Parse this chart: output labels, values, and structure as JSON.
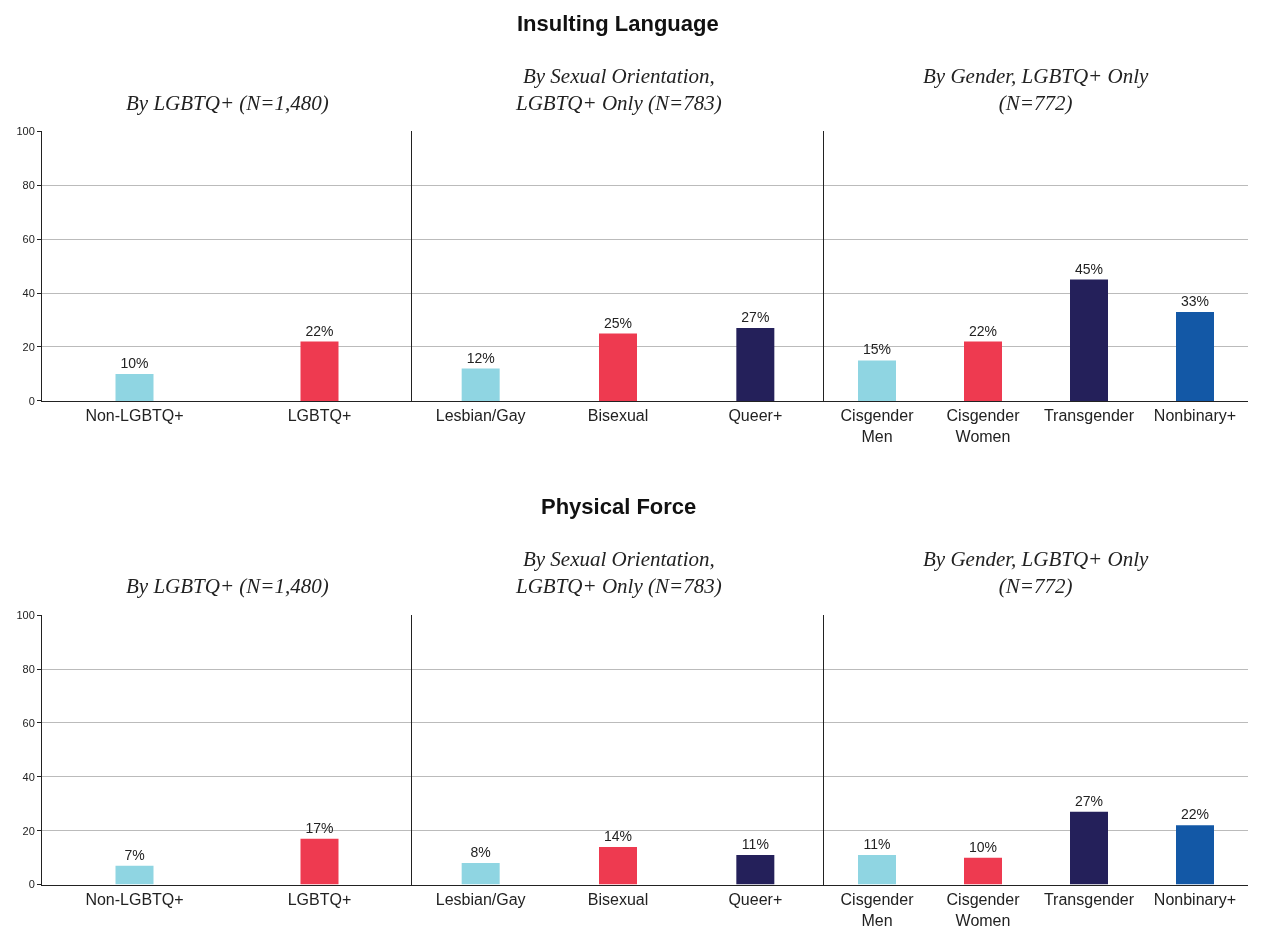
{
  "chart_data": [
    {
      "type": "bar",
      "subtitle": "By LGBTQ+ (N=1,480)",
      "categories": [
        "Non-LGBTQ+",
        "LGBTQ+"
      ],
      "values": [
        10,
        22
      ],
      "value_labels": [
        "10%",
        "22%"
      ],
      "colors": [
        "#8fd5e2",
        "#ee3a50"
      ],
      "ylim": [
        0,
        100
      ],
      "yticks": [
        0,
        20,
        40,
        60,
        80,
        100
      ],
      "grid": "y"
    },
    {
      "type": "bar",
      "title": "Insulting Language",
      "subtitle": "By Sexual Orientation, LGBTQ+ Only (N=783)",
      "categories": [
        "Lesbian/Gay",
        "Bisexual",
        "Queer+"
      ],
      "values": [
        12,
        25,
        27
      ],
      "value_labels": [
        "12%",
        "25%",
        "27%"
      ],
      "colors": [
        "#8fd5e2",
        "#ee3a50",
        "#24205a"
      ],
      "ylim": [
        0,
        100
      ],
      "yticks": [
        0,
        20,
        40,
        60,
        80,
        100
      ],
      "grid": "y",
      "tick_labels": "x"
    },
    {
      "type": "bar",
      "subtitle": "By Gender, LGBTQ+ Only (N=772)",
      "categories": [
        "Cisgender Men",
        "Cisgender Women",
        "Transgender",
        "Nonbinary+"
      ],
      "values": [
        15,
        22,
        45,
        33
      ],
      "value_labels": [
        "15%",
        "22%",
        "45%",
        "33%"
      ],
      "colors": [
        "#8fd5e2",
        "#ee3a50",
        "#24205a",
        "#1358a6"
      ],
      "ylim": [
        0,
        100
      ],
      "yticks": [
        0,
        20,
        40,
        60,
        80,
        100
      ],
      "grid": "y",
      "tick_labels": "x"
    },
    {
      "type": "bar",
      "subtitle": "By LGBTQ+ (N=1,480)",
      "categories": [
        "Non-LGBTQ+",
        "LGBTQ+"
      ],
      "values": [
        7,
        17
      ],
      "value_labels": [
        "7%",
        "17%"
      ],
      "colors": [
        "#8fd5e2",
        "#ee3a50"
      ],
      "ylim": [
        0,
        100
      ],
      "yticks": [
        0,
        20,
        40,
        60,
        80,
        100
      ],
      "grid": "y"
    },
    {
      "type": "bar",
      "title": "Physical Force",
      "subtitle": "By Sexual Orientation, LGBTQ+ Only (N=783)",
      "categories": [
        "Lesbian/Gay",
        "Bisexual",
        "Queer+"
      ],
      "values": [
        8,
        14,
        11
      ],
      "value_labels": [
        "8%",
        "14%",
        "11%"
      ],
      "colors": [
        "#8fd5e2",
        "#ee3a50",
        "#24205a"
      ],
      "ylim": [
        0,
        100
      ],
      "yticks": [
        0,
        20,
        40,
        60,
        80,
        100
      ],
      "grid": "y",
      "tick_labels": "x"
    },
    {
      "type": "bar",
      "subtitle": "By Gender, LGBTQ+ Only (N=772)",
      "categories": [
        "Cisgender Men",
        "Cisgender Women",
        "Transgender",
        "Nonbinary+"
      ],
      "values": [
        11,
        10,
        27,
        22
      ],
      "value_labels": [
        "11%",
        "10%",
        "27%",
        "22%"
      ],
      "colors": [
        "#8fd5e2",
        "#ee3a50",
        "#24205a",
        "#1358a6"
      ],
      "ylim": [
        0,
        100
      ],
      "yticks": [
        0,
        20,
        40,
        60,
        80,
        100
      ],
      "grid": "y",
      "tick_labels": "x"
    }
  ]
}
